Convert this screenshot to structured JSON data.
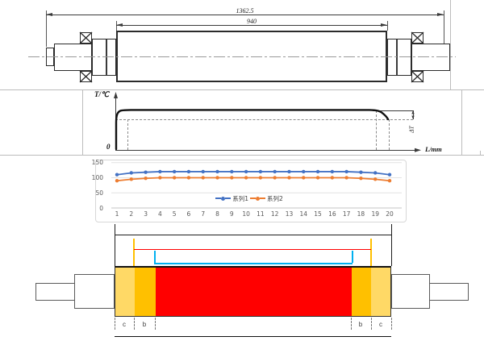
{
  "top_drawing": {
    "dim_overall": "1362.5",
    "dim_body": "940"
  },
  "temp_graph": {
    "y_axis_label": "T/℃",
    "origin_label": "0",
    "x_axis_label": "L/mm",
    "delta_label": "ΔT"
  },
  "chart_data": {
    "type": "line",
    "title": "",
    "xlabel": "",
    "ylabel": "",
    "categories": [
      1,
      2,
      3,
      4,
      5,
      6,
      7,
      8,
      9,
      10,
      11,
      12,
      13,
      14,
      15,
      16,
      17,
      18,
      19,
      20
    ],
    "yticks": [
      0,
      50,
      100,
      150
    ],
    "ylim": [
      0,
      150
    ],
    "grid": true,
    "legend_position": "center-bottom-inside",
    "series": [
      {
        "name": "系列1",
        "color": "#4472C4",
        "values": [
          110,
          116,
          118,
          120,
          120,
          120,
          120,
          120,
          120,
          120,
          120,
          120,
          120,
          120,
          120,
          120,
          120,
          118,
          116,
          110
        ]
      },
      {
        "name": "系列2",
        "color": "#ED7D31",
        "values": [
          90,
          95,
          98,
          100,
          100,
          100,
          100,
          100,
          100,
          100,
          100,
          100,
          100,
          100,
          100,
          100,
          100,
          98,
          95,
          90
        ]
      }
    ]
  },
  "bottom_diagram": {
    "zone_labels": [
      "c",
      "b",
      "b",
      "c"
    ],
    "colors": {
      "zone_c": "#FFD966",
      "zone_b": "#FFC000",
      "center": "#FF0000",
      "red_reference_line": "#FF0000",
      "cyan_reference_line": "#00B0F0",
      "orange_reference_line": "#FFC000"
    }
  }
}
